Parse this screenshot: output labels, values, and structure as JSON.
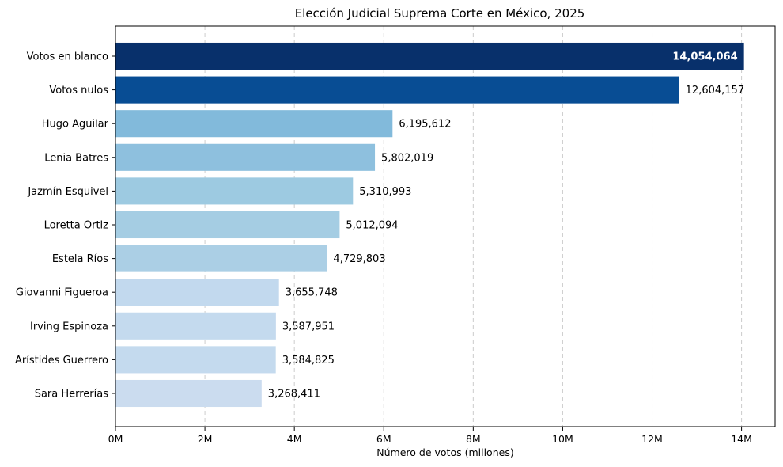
{
  "chart_data": {
    "type": "bar",
    "orientation": "horizontal",
    "title": "Elección Judicial Suprema Corte en México, 2025",
    "xlabel": "Número de votos (millones)",
    "ylabel": "",
    "xlim": [
      0,
      14750000
    ],
    "xticks": [
      0,
      2000000,
      4000000,
      6000000,
      8000000,
      10000000,
      12000000,
      14000000
    ],
    "xtick_labels": [
      "0M",
      "2M",
      "4M",
      "6M",
      "8M",
      "10M",
      "12M",
      "14M"
    ],
    "grid": "x-dashed",
    "categories": [
      "Votos en blanco",
      "Votos nulos",
      "Hugo Aguilar",
      "Lenia Batres",
      "Jazmín Esquivel",
      "Loretta Ortiz",
      "Estela Ríos",
      "Giovanni Figueroa",
      "Irving Espinoza",
      "Arístides Guerrero",
      "Sara Herrerías"
    ],
    "values": [
      14054064,
      12604157,
      6195612,
      5802019,
      5310993,
      5012094,
      4729803,
      3655748,
      3587951,
      3584825,
      3268411
    ],
    "value_labels": [
      "14,054,064",
      "12,604,157",
      "6,195,612",
      "5,802,019",
      "5,310,993",
      "5,012,094",
      "4,729,803",
      "3,655,748",
      "3,587,951",
      "3,584,825",
      "3,268,411"
    ],
    "colors": [
      "#08306b",
      "#084d94",
      "#82badb",
      "#8ec0de",
      "#9dcae1",
      "#a5cde3",
      "#abcfe5",
      "#c2d9ee",
      "#c4daee",
      "#c4daee",
      "#cbdcef"
    ]
  }
}
